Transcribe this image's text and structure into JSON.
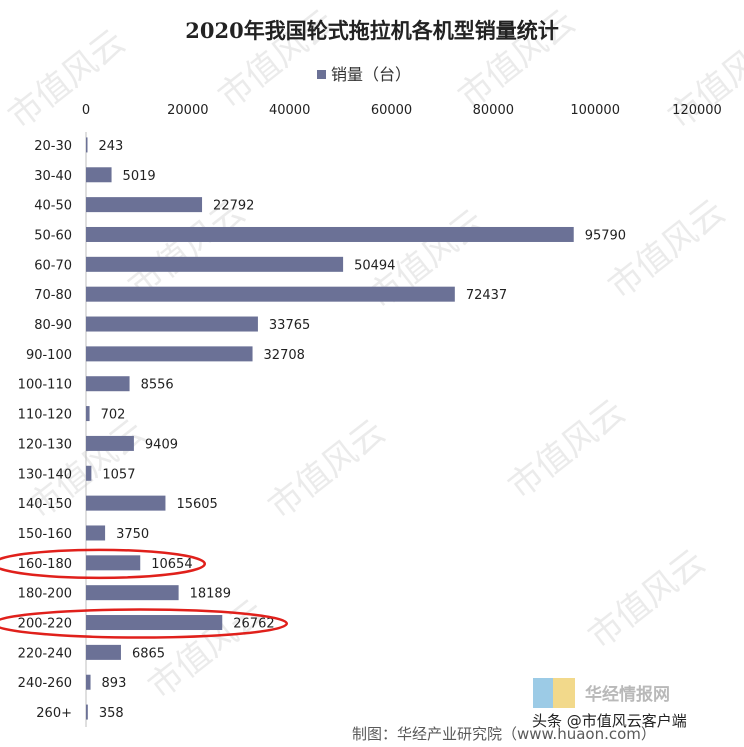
{
  "chart_data": {
    "type": "bar",
    "orientation": "horizontal",
    "title": "2020年我国轮式拖拉机各机型销量统计",
    "legend": {
      "label": "销量（台）",
      "position": "top"
    },
    "categories": [
      "20-30",
      "30-40",
      "40-50",
      "50-60",
      "60-70",
      "70-80",
      "80-90",
      "90-100",
      "100-110",
      "110-120",
      "120-130",
      "130-140",
      "140-150",
      "150-160",
      "160-180",
      "180-200",
      "200-220",
      "220-240",
      "240-260",
      "260+"
    ],
    "series": [
      {
        "name": "销量（台）",
        "values": [
          243,
          5019,
          22792,
          95790,
          50494,
          72437,
          33765,
          32708,
          8556,
          702,
          9409,
          1057,
          15605,
          3750,
          10654,
          18189,
          26762,
          6865,
          893,
          358
        ]
      }
    ],
    "xlim": [
      0,
      120000
    ],
    "xticks": [
      "0",
      "20000",
      "40000",
      "60000",
      "80000",
      "100000",
      "120000"
    ],
    "x_axis_position": "top",
    "grid": false,
    "highlighted_categories": [
      "160-180",
      "200-220"
    ],
    "bar_color": "#6b7196",
    "highlight_color": "#e0201b"
  },
  "watermark": {
    "text": "市值风云"
  },
  "footer": {
    "source": "制图：华经产业研究院（www.huaon.com）",
    "overlay": "头条 @市值风云客户端",
    "brand": "华经情报网"
  }
}
